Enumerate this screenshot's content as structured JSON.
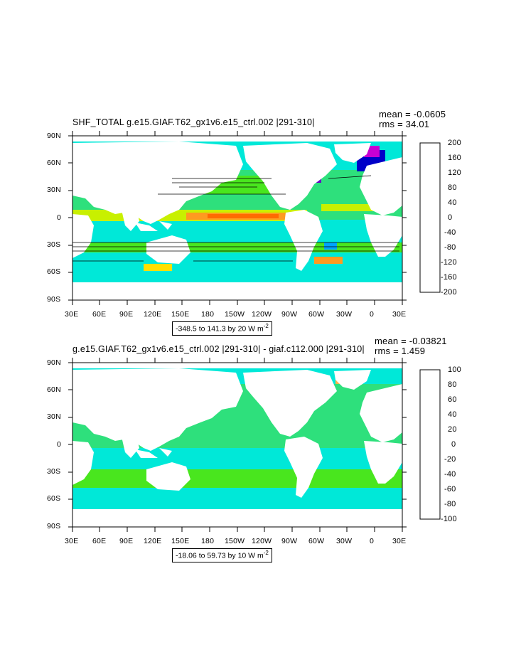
{
  "panels": [
    {
      "title": "SHF_TOTAL g.e15.GIAF.T62_gx1v6.e15_ctrl.002 |291-310|",
      "mean_text": "mean = -0.0605",
      "rms_text": "rms = 34.01",
      "range_text": "-348.5 to 141.3 by 20  W m",
      "range_exp": "-2",
      "colorbar": {
        "labels": [
          "200",
          "160",
          "120",
          "80",
          "40",
          "0",
          "-40",
          "-80",
          "-120",
          "-160",
          "-200"
        ],
        "colors": [
          "#b50000",
          "#d41600",
          "#ef3a00",
          "#ff6a00",
          "#ff9a20",
          "#ffb446",
          "#ffe000",
          "#c8f000",
          "#49e61e",
          "#2ee07c",
          "#00e8d8",
          "#00c8ff",
          "#00a4ff",
          "#0060e8",
          "#0000c8",
          "#6a00c8",
          "#c800d4",
          "#ff50ff",
          "#c8c8c8",
          "#6e6e6e"
        ]
      }
    },
    {
      "title": "g.e15.GIAF.T62_gx1v6.e15_ctrl.002 |291-310| - giaf.c112.000 |291-310|",
      "mean_text": "mean = -0.03821",
      "rms_text": "rms = 1.459",
      "range_text": "-18.06 to 59.73 by 10  W m",
      "range_exp": "-2",
      "colorbar": {
        "labels": [
          "100",
          "80",
          "60",
          "40",
          "20",
          "0",
          "-20",
          "-40",
          "-60",
          "-80",
          "-100"
        ],
        "colors": [
          "#b50000",
          "#d41600",
          "#ef3a00",
          "#ff6a00",
          "#ff9a20",
          "#ffb446",
          "#ffe000",
          "#c8f000",
          "#49e61e",
          "#2ee07c",
          "#00e8d8",
          "#00c8ff",
          "#00a4ff",
          "#0060e8",
          "#0000c8",
          "#6a00c8",
          "#c800d4",
          "#ff50ff",
          "#c8c8c8",
          "#6e6e6e"
        ]
      }
    }
  ],
  "axes": {
    "lat_labels": [
      "90N",
      "60N",
      "30N",
      "0",
      "30S",
      "60S",
      "90S"
    ],
    "lon_labels": [
      "30E",
      "60E",
      "90E",
      "120E",
      "150E",
      "180",
      "150W",
      "120W",
      "90W",
      "60W",
      "30W",
      "0",
      "30E"
    ]
  }
}
